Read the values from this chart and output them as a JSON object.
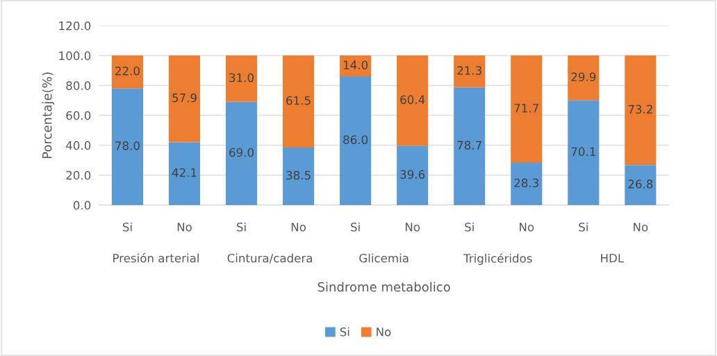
{
  "chart_data": {
    "type": "bar",
    "stacked": true,
    "xlabel": "Sindrome metabolico",
    "ylabel": "Porcentaje(%)",
    "categories": [
      "Si",
      "No",
      "Si",
      "No",
      "Si",
      "No",
      "Si",
      "No",
      "Si",
      "No"
    ],
    "annotations": [
      "Presión arterial",
      "Cintura/cadera",
      "Glicemia",
      "Triglicéridos",
      "HDL"
    ],
    "series": [
      {
        "name": "Si",
        "color": "#5b9bd5",
        "values": [
          78.0,
          42.1,
          69.0,
          38.5,
          86.0,
          39.6,
          78.7,
          28.3,
          70.1,
          26.8
        ],
        "value_labels": [
          "78.0",
          "42.1",
          "69.0",
          "38.5",
          "86.0",
          "39.6",
          "78.7",
          "28.3",
          "70.1",
          "26.8"
        ]
      },
      {
        "name": "No",
        "color": "#ed7d31",
        "values": [
          22.0,
          57.9,
          31.0,
          61.5,
          14.0,
          60.4,
          21.3,
          71.7,
          29.9,
          73.2
        ],
        "value_labels": [
          "22.0",
          "57.9",
          "31.0",
          "61.5",
          "14.0",
          "60.4",
          "21.3",
          "71.7",
          "29.9",
          "73.2"
        ]
      }
    ],
    "ylim": [
      0,
      120
    ],
    "yticks": [
      {
        "value": 0,
        "label": "0.0"
      },
      {
        "value": 20,
        "label": "20.0"
      },
      {
        "value": 40,
        "label": "40.0"
      },
      {
        "value": 60,
        "label": "60.0"
      },
      {
        "value": 80,
        "label": "80.0"
      },
      {
        "value": 100,
        "label": "100.0"
      },
      {
        "value": 120,
        "label": "120.0"
      }
    ],
    "grid": "y",
    "legend": "bottom"
  }
}
